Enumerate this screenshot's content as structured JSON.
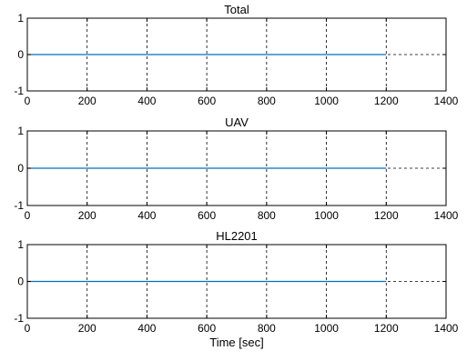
{
  "chart_data": [
    {
      "type": "line",
      "title": "Total",
      "xlabel": "",
      "ylabel": "",
      "xlim": [
        0,
        1400
      ],
      "ylim": [
        -1,
        1
      ],
      "xticks": [
        "0",
        "200",
        "400",
        "600",
        "800",
        "1000",
        "1200",
        "1400"
      ],
      "yticks": [
        "-1",
        "0",
        "1"
      ],
      "grid": true,
      "series": [
        {
          "x": [
            0,
            1200
          ],
          "y": [
            0,
            0
          ],
          "color": "#0072bd"
        }
      ]
    },
    {
      "type": "line",
      "title": "UAV",
      "xlabel": "",
      "ylabel": "",
      "xlim": [
        0,
        1400
      ],
      "ylim": [
        -1,
        1
      ],
      "xticks": [
        "0",
        "200",
        "400",
        "600",
        "800",
        "1000",
        "1200",
        "1400"
      ],
      "yticks": [
        "-1",
        "0",
        "1"
      ],
      "grid": true,
      "series": [
        {
          "x": [
            0,
            1200
          ],
          "y": [
            0,
            0
          ],
          "color": "#0072bd"
        }
      ]
    },
    {
      "type": "line",
      "title": "HL2201",
      "xlabel": "Time [sec]",
      "ylabel": "",
      "xlim": [
        0,
        1400
      ],
      "ylim": [
        -1,
        1
      ],
      "xticks": [
        "0",
        "200",
        "400",
        "600",
        "800",
        "1000",
        "1200",
        "1400"
      ],
      "yticks": [
        "-1",
        "0",
        "1"
      ],
      "grid": true,
      "series": [
        {
          "x": [
            0,
            1200
          ],
          "y": [
            0,
            0
          ],
          "color": "#0072bd"
        }
      ]
    }
  ]
}
